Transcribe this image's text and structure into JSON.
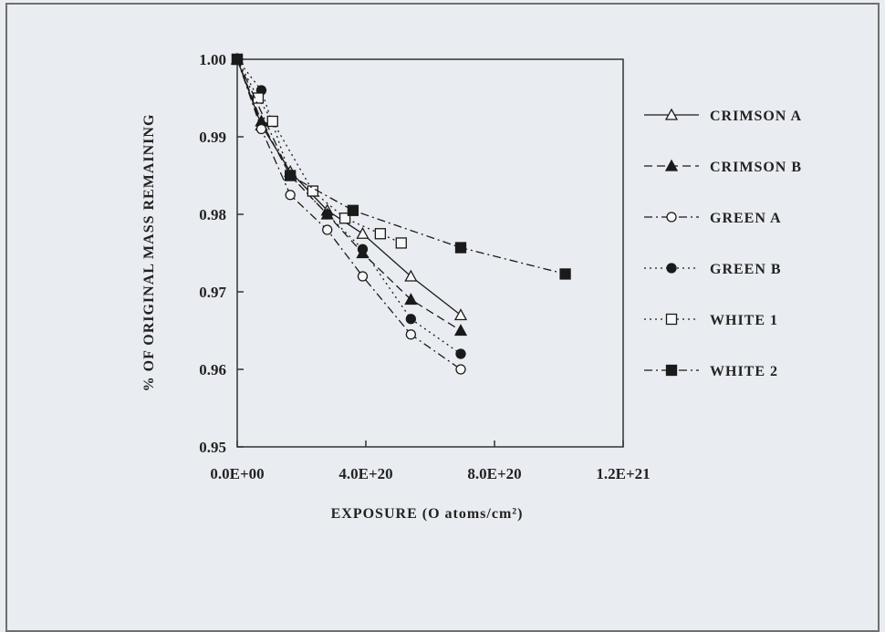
{
  "chart_data": {
    "type": "line",
    "title": "",
    "xlabel": "EXPOSURE (O atoms/cm²)",
    "ylabel": "% OF ORIGINAL MASS REMAINING",
    "xlim": [
      0,
      1.2e+21
    ],
    "ylim": [
      0.95,
      1.0
    ],
    "x_ticks": [
      0,
      4e+20,
      8e+20,
      1.2e+21
    ],
    "x_tick_labels": [
      "0.0E+00",
      "4.0E+20",
      "8.0E+20",
      "1.2E+21"
    ],
    "y_ticks": [
      0.95,
      0.96,
      0.97,
      0.98,
      0.99,
      1.0
    ],
    "y_tick_labels": [
      "0.95",
      "0.96",
      "0.97",
      "0.98",
      "0.99",
      "1.00"
    ],
    "grid": false,
    "legend_position": "right",
    "series": [
      {
        "name": "CRIMSON A",
        "marker": "triangle-open",
        "dash": "solid",
        "x": [
          0,
          7.5e+19,
          1.65e+20,
          2.8e+20,
          3.9e+20,
          5.4e+20,
          6.95e+20
        ],
        "y": [
          1.0,
          0.9915,
          0.9855,
          0.9805,
          0.9775,
          0.972,
          0.967
        ]
      },
      {
        "name": "CRIMSON B",
        "marker": "triangle-filled",
        "dash": "longdash",
        "x": [
          0,
          7.5e+19,
          1.65e+20,
          2.8e+20,
          3.9e+20,
          5.4e+20,
          6.95e+20
        ],
        "y": [
          1.0,
          0.992,
          0.985,
          0.98,
          0.975,
          0.969,
          0.965
        ]
      },
      {
        "name": "GREEN A",
        "marker": "circle-open",
        "dash": "dashdot",
        "x": [
          0,
          7.5e+19,
          1.65e+20,
          2.8e+20,
          3.9e+20,
          5.4e+20,
          6.95e+20
        ],
        "y": [
          1.0,
          0.991,
          0.9825,
          0.978,
          0.972,
          0.9645,
          0.96
        ]
      },
      {
        "name": "GREEN B",
        "marker": "circle-filled",
        "dash": "dotted",
        "x": [
          0,
          7.5e+19,
          1.65e+20,
          2.8e+20,
          3.9e+20,
          5.4e+20,
          6.95e+20
        ],
        "y": [
          1.0,
          0.996,
          0.985,
          0.98,
          0.9755,
          0.9665,
          0.962
        ]
      },
      {
        "name": "WHITE 1",
        "marker": "square-open",
        "dash": "dotted",
        "x": [
          0,
          6.5e+19,
          1.1e+20,
          2.35e+20,
          3.35e+20,
          4.45e+20,
          5.1e+20
        ],
        "y": [
          1.0,
          0.995,
          0.992,
          0.983,
          0.9795,
          0.9775,
          0.9763
        ]
      },
      {
        "name": "WHITE 2",
        "marker": "square-filled",
        "dash": "dashdot",
        "x": [
          0,
          1.65e+20,
          3.6e+20,
          6.95e+20,
          1.02e+21
        ],
        "y": [
          1.0,
          0.985,
          0.9805,
          0.9757,
          0.9723
        ]
      }
    ]
  }
}
